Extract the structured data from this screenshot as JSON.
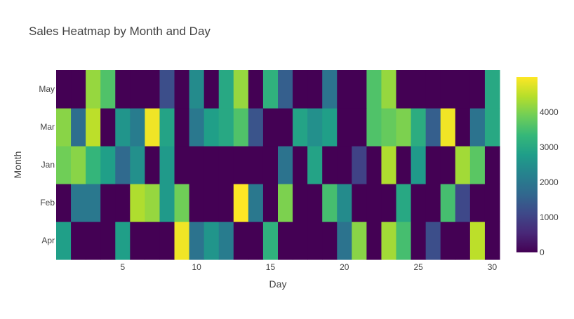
{
  "chart_data": {
    "type": "heatmap",
    "title": "Sales Heatmap by Month and Day",
    "xlabel": "Day",
    "ylabel": "Month",
    "x": [
      1,
      2,
      3,
      4,
      5,
      6,
      7,
      8,
      9,
      10,
      11,
      12,
      13,
      14,
      15,
      16,
      17,
      18,
      19,
      20,
      21,
      22,
      23,
      24,
      25,
      26,
      27,
      28,
      29,
      30
    ],
    "x_ticks": [
      5,
      10,
      15,
      20,
      25,
      30
    ],
    "y_categories": [
      "Apr",
      "Feb",
      "Jan",
      "Mar",
      "May"
    ],
    "z": [
      [
        2800,
        0,
        0,
        0,
        2800,
        0,
        0,
        0,
        4900,
        1900,
        2600,
        2100,
        0,
        0,
        3200,
        0,
        0,
        0,
        0,
        1900,
        4100,
        0,
        4300,
        3500,
        0,
        1200,
        0,
        0,
        4500,
        0
      ],
      [
        0,
        2000,
        2000,
        0,
        0,
        4400,
        4200,
        2700,
        3900,
        0,
        0,
        0,
        5000,
        2000,
        0,
        4000,
        0,
        0,
        3500,
        2400,
        0,
        0,
        0,
        3000,
        0,
        0,
        3500,
        1100,
        0,
        0
      ],
      [
        3900,
        4100,
        3300,
        2800,
        1700,
        2500,
        0,
        2700,
        0,
        0,
        0,
        0,
        0,
        0,
        0,
        1900,
        0,
        2900,
        0,
        0,
        1000,
        0,
        4400,
        0,
        2700,
        0,
        0,
        4300,
        3700,
        0
      ],
      [
        4100,
        1800,
        4500,
        0,
        2600,
        2100,
        4900,
        2900,
        0,
        2000,
        2800,
        3000,
        3600,
        1300,
        0,
        0,
        2900,
        2500,
        2800,
        0,
        0,
        3600,
        3800,
        4000,
        3100,
        1500,
        4900,
        0,
        1900,
        3000
      ],
      [
        0,
        0,
        4200,
        3600,
        0,
        0,
        0,
        1200,
        0,
        2400,
        0,
        3000,
        4200,
        0,
        3200,
        1500,
        0,
        0,
        1900,
        0,
        0,
        3600,
        4200,
        0,
        0,
        0,
        0,
        0,
        0,
        3000
      ]
    ],
    "zmin": 0,
    "zmax": 5000,
    "colorscale": "Viridis",
    "colorbar_ticks": [
      0,
      1000,
      2000,
      3000,
      4000
    ]
  }
}
